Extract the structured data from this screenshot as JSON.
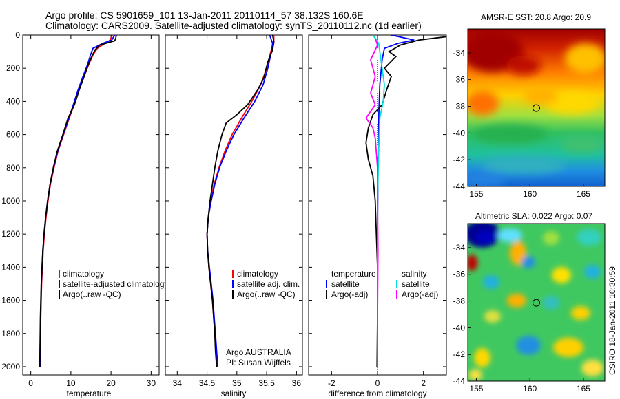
{
  "title": {
    "line1": "Argo profile: CS 5901659_101 13-Jan-2011 20110114_57 38.132S 160.6E",
    "line2": "Climatology: CARS2009. Satellite-adjusted climatology: synTS_20110112.nc (1d earlier)"
  },
  "colors": {
    "climatology": "#ff0000",
    "satellite": "#0000ff",
    "argo": "#000000",
    "satellite_salinity": "#00e0e0",
    "argo_salinity_adj": "#ff00ff"
  },
  "side_label": "CSIRO 18-Jan-2011 10:30:59",
  "chart_data": [
    {
      "id": "temperature-profile",
      "type": "line",
      "xlabel": "temperature",
      "ylabel": "",
      "xlim": [
        -2,
        32
      ],
      "ylim": [
        2050,
        0
      ],
      "xticks": [
        0,
        10,
        20,
        30
      ],
      "yticks": [
        0,
        200,
        400,
        600,
        800,
        1000,
        1200,
        1400,
        1600,
        1800,
        2000
      ],
      "legend": {
        "placement": "lower-right",
        "entries": [
          "climatology",
          "satellite-adjusted climatology",
          "Argo(..raw -QC)"
        ]
      },
      "series": [
        {
          "name": "climatology",
          "color": "#ff0000",
          "points": [
            [
              20.3,
              0
            ],
            [
              19.8,
              30
            ],
            [
              18.5,
              50
            ],
            [
              16.6,
              80
            ],
            [
              15.5,
              120
            ],
            [
              14.4,
              180
            ],
            [
              13.3,
              250
            ],
            [
              12.0,
              330
            ],
            [
              10.8,
              420
            ],
            [
              9.6,
              500
            ],
            [
              8.2,
              600
            ],
            [
              6.8,
              700
            ],
            [
              5.8,
              800
            ],
            [
              4.9,
              900
            ],
            [
              4.3,
              1000
            ],
            [
              3.8,
              1100
            ],
            [
              3.4,
              1200
            ],
            [
              3.1,
              1300
            ],
            [
              2.9,
              1400
            ],
            [
              2.7,
              1500
            ],
            [
              2.6,
              1600
            ],
            [
              2.5,
              1700
            ],
            [
              2.45,
              1800
            ],
            [
              2.4,
              1900
            ],
            [
              2.35,
              2000
            ]
          ]
        },
        {
          "name": "satellite-adjusted climatology",
          "color": "#0000ff",
          "points": [
            [
              20.9,
              0
            ],
            [
              20.2,
              30
            ],
            [
              18.0,
              50
            ],
            [
              15.5,
              80
            ],
            [
              14.9,
              120
            ],
            [
              14.1,
              180
            ],
            [
              13.0,
              250
            ],
            [
              11.8,
              330
            ],
            [
              10.6,
              420
            ],
            [
              9.5,
              500
            ],
            [
              8.1,
              600
            ],
            [
              6.7,
              700
            ],
            [
              5.7,
              800
            ],
            [
              4.8,
              900
            ],
            [
              4.2,
              1000
            ],
            [
              3.7,
              1100
            ],
            [
              3.3,
              1200
            ],
            [
              3.0,
              1300
            ],
            [
              2.8,
              1400
            ],
            [
              2.65,
              1500
            ],
            [
              2.55,
              1600
            ],
            [
              2.45,
              1700
            ],
            [
              2.4,
              1800
            ],
            [
              2.35,
              1900
            ],
            [
              2.3,
              2000
            ]
          ]
        },
        {
          "name": "Argo(..raw -QC)",
          "color": "#000000",
          "points": [
            [
              21.3,
              0
            ],
            [
              21.2,
              20
            ],
            [
              20.9,
              35
            ],
            [
              17.2,
              60
            ],
            [
              16.0,
              90
            ],
            [
              15.2,
              130
            ],
            [
              14.3,
              180
            ],
            [
              13.3,
              250
            ],
            [
              12.1,
              330
            ],
            [
              10.9,
              420
            ],
            [
              9.3,
              500
            ],
            [
              8.0,
              600
            ],
            [
              6.6,
              700
            ],
            [
              5.6,
              800
            ],
            [
              4.8,
              900
            ],
            [
              4.2,
              1000
            ],
            [
              3.7,
              1100
            ],
            [
              3.3,
              1200
            ],
            [
              3.0,
              1300
            ],
            [
              2.8,
              1400
            ],
            [
              2.6,
              1500
            ],
            [
              2.5,
              1600
            ],
            [
              2.4,
              1700
            ],
            [
              2.35,
              1800
            ],
            [
              2.3,
              1900
            ],
            [
              2.25,
              2000
            ]
          ]
        }
      ]
    },
    {
      "id": "salinity-profile",
      "type": "line",
      "xlabel": "salinity",
      "ylabel": "",
      "xlim": [
        33.8,
        36.1
      ],
      "ylim": [
        2050,
        0
      ],
      "xticks": [
        34,
        34.5,
        35,
        35.5,
        36
      ],
      "xticklabels": [
        "34",
        "34.5",
        "35",
        "35.5",
        "36"
      ],
      "annotation": [
        "Argo AUSTRALIA",
        "PI: Susan Wijffels"
      ],
      "legend": {
        "placement": "lower-right",
        "entries": [
          "climatology",
          "satellite adj. clim.",
          "Argo(..raw -QC)"
        ]
      },
      "series": [
        {
          "name": "climatology",
          "color": "#ff0000",
          "points": [
            [
              35.62,
              0
            ],
            [
              35.62,
              50
            ],
            [
              35.57,
              100
            ],
            [
              35.5,
              200
            ],
            [
              35.4,
              300
            ],
            [
              35.25,
              400
            ],
            [
              35.08,
              500
            ],
            [
              34.92,
              600
            ],
            [
              34.8,
              700
            ],
            [
              34.7,
              800
            ],
            [
              34.62,
              900
            ],
            [
              34.56,
              1000
            ],
            [
              34.52,
              1100
            ],
            [
              34.5,
              1200
            ],
            [
              34.51,
              1300
            ],
            [
              34.53,
              1400
            ],
            [
              34.56,
              1500
            ],
            [
              34.59,
              1600
            ],
            [
              34.61,
              1700
            ],
            [
              34.63,
              1800
            ],
            [
              34.65,
              1900
            ],
            [
              34.67,
              2000
            ]
          ]
        },
        {
          "name": "satellite adj. clim.",
          "color": "#0000ff",
          "points": [
            [
              35.55,
              0
            ],
            [
              35.6,
              50
            ],
            [
              35.58,
              100
            ],
            [
              35.52,
              200
            ],
            [
              35.44,
              300
            ],
            [
              35.3,
              400
            ],
            [
              35.12,
              500
            ],
            [
              34.95,
              600
            ],
            [
              34.82,
              700
            ],
            [
              34.71,
              800
            ],
            [
              34.63,
              900
            ],
            [
              34.57,
              1000
            ],
            [
              34.52,
              1100
            ],
            [
              34.5,
              1200
            ],
            [
              34.51,
              1300
            ],
            [
              34.54,
              1400
            ],
            [
              34.57,
              1500
            ],
            [
              34.6,
              1600
            ],
            [
              34.62,
              1700
            ],
            [
              34.64,
              1800
            ],
            [
              34.66,
              1900
            ],
            [
              34.68,
              2000
            ]
          ]
        },
        {
          "name": "Argo(..raw -QC)",
          "color": "#000000",
          "points": [
            [
              35.6,
              0
            ],
            [
              35.62,
              40
            ],
            [
              35.6,
              90
            ],
            [
              35.52,
              160
            ],
            [
              35.45,
              260
            ],
            [
              35.35,
              330
            ],
            [
              35.18,
              420
            ],
            [
              35.0,
              480
            ],
            [
              34.82,
              530
            ],
            [
              34.75,
              600
            ],
            [
              34.68,
              700
            ],
            [
              34.63,
              800
            ],
            [
              34.59,
              900
            ],
            [
              34.55,
              1000
            ],
            [
              34.52,
              1100
            ],
            [
              34.5,
              1200
            ],
            [
              34.51,
              1300
            ],
            [
              34.53,
              1400
            ],
            [
              34.56,
              1500
            ],
            [
              34.59,
              1600
            ],
            [
              34.61,
              1700
            ],
            [
              34.63,
              1800
            ],
            [
              34.64,
              1900
            ],
            [
              34.66,
              2000
            ]
          ]
        }
      ]
    },
    {
      "id": "difference-profile",
      "type": "line",
      "xlabel": "difference from climatology",
      "ylabel": "",
      "xlim": [
        -3,
        3
      ],
      "ylim": [
        2050,
        0
      ],
      "xticks": [
        -2,
        0,
        2
      ],
      "legend": {
        "placement": "lower-center",
        "groups": [
          {
            "title": "temperature",
            "entries": [
              "satellite",
              "Argo(-adj)"
            ]
          },
          {
            "title": "salinity",
            "entries": [
              "satellite",
              "Argo(-adj)"
            ]
          }
        ]
      },
      "series": [
        {
          "name": "satellite",
          "group": "temperature",
          "color": "#0000ff",
          "points": [
            [
              0.6,
              0
            ],
            [
              1.6,
              30
            ],
            [
              0.9,
              50
            ],
            [
              0.3,
              80
            ],
            [
              0.2,
              150
            ],
            [
              0.1,
              300
            ],
            [
              0.05,
              500
            ],
            [
              0.02,
              800
            ],
            [
              0.0,
              1200
            ],
            [
              0.0,
              1600
            ],
            [
              0.0,
              2000
            ]
          ]
        },
        {
          "name": "Argo(-adj)",
          "group": "temperature",
          "color": "#000000",
          "points": [
            [
              3.0,
              10
            ],
            [
              1.8,
              30
            ],
            [
              1.0,
              60
            ],
            [
              0.5,
              100
            ],
            [
              0.8,
              130
            ],
            [
              0.3,
              200
            ],
            [
              0.6,
              250
            ],
            [
              0.4,
              330
            ],
            [
              0.2,
              420
            ],
            [
              -0.2,
              480
            ],
            [
              -0.4,
              560
            ],
            [
              -0.5,
              650
            ],
            [
              -0.4,
              750
            ],
            [
              -0.2,
              850
            ],
            [
              -0.1,
              1000
            ],
            [
              -0.05,
              1200
            ],
            [
              0.0,
              1400
            ],
            [
              0.0,
              1700
            ],
            [
              -0.02,
              2000
            ]
          ]
        },
        {
          "name": "satellite",
          "group": "salinity",
          "color": "#00e0e0",
          "points": [
            [
              -0.2,
              0
            ],
            [
              0.05,
              50
            ],
            [
              0.1,
              100
            ],
            [
              0.2,
              200
            ],
            [
              0.3,
              300
            ],
            [
              0.25,
              400
            ],
            [
              0.1,
              500
            ],
            [
              0.05,
              700
            ],
            [
              0.0,
              1000
            ],
            [
              0.0,
              1400
            ],
            [
              0.0,
              2000
            ]
          ]
        },
        {
          "name": "Argo(-adj)",
          "group": "salinity",
          "color": "#ff00ff",
          "points": [
            [
              -0.1,
              20
            ],
            [
              0.0,
              60
            ],
            [
              -0.3,
              150
            ],
            [
              -0.1,
              250
            ],
            [
              -0.3,
              350
            ],
            [
              -0.1,
              420
            ],
            [
              -0.5,
              500
            ],
            [
              -0.2,
              560
            ],
            [
              -0.1,
              620
            ],
            [
              0.0,
              800
            ],
            [
              0.0,
              1000
            ],
            [
              0.02,
              1300
            ],
            [
              0.0,
              1700
            ],
            [
              0.0,
              2000
            ]
          ]
        }
      ]
    },
    {
      "id": "sst-map",
      "type": "heatmap",
      "title": "AMSR-E SST: 20.8 Argo: 20.9",
      "xlim": [
        154.2,
        167
      ],
      "ylim": [
        -44,
        -32.2
      ],
      "xticks": [
        155,
        160,
        165
      ],
      "yticks": [
        -34,
        -36,
        -38,
        -40,
        -42,
        -44
      ],
      "marker": {
        "lon": 160.6,
        "lat": -38.132
      }
    },
    {
      "id": "sla-map",
      "type": "heatmap",
      "title": "Altimetric SLA: 0.022 Argo: 0.07",
      "xlim": [
        154.2,
        167
      ],
      "ylim": [
        -44,
        -32.2
      ],
      "xticks": [
        155,
        160,
        165
      ],
      "yticks": [
        -34,
        -36,
        -38,
        -40,
        -42,
        -44
      ],
      "marker": {
        "lon": 160.6,
        "lat": -38.132
      }
    }
  ]
}
